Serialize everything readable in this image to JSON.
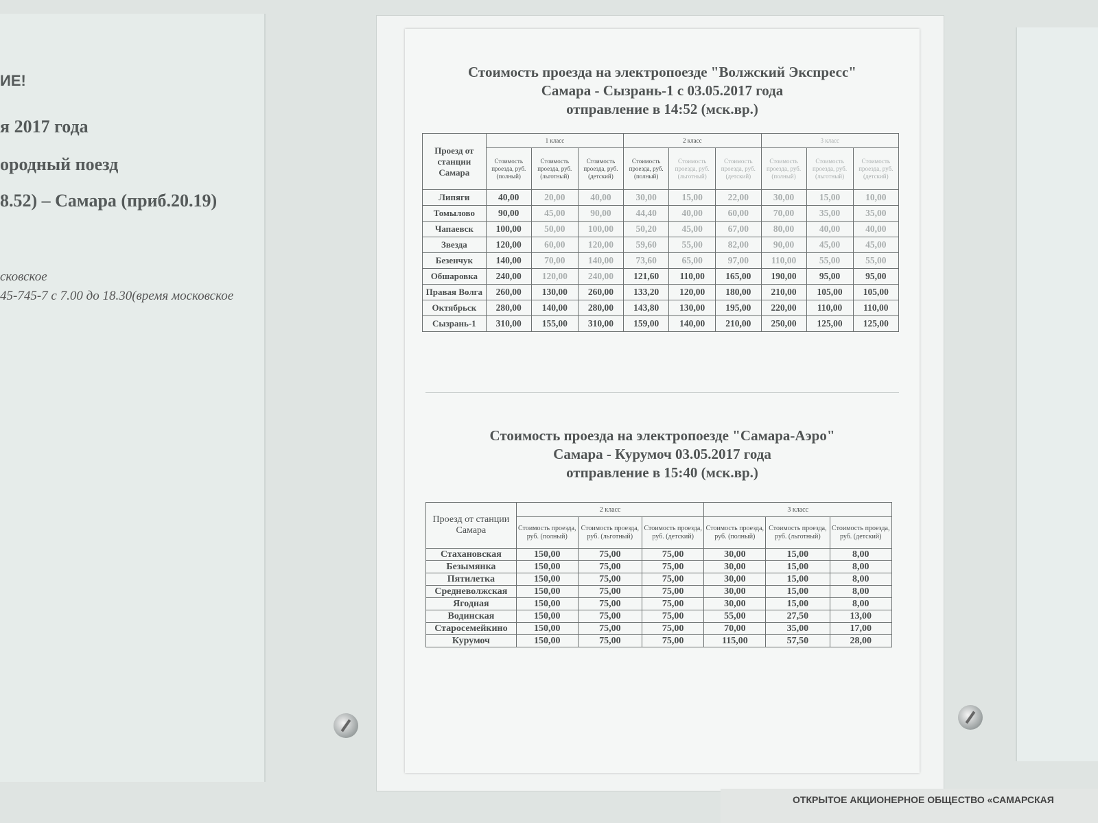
{
  "left_notice": {
    "line1": "ИЕ!",
    "line2": "я 2017 года",
    "line3": "ородный поезд",
    "line4": "8.52) – Самара (приб.20.19)",
    "line5": "сковское",
    "line6": "45-745-7 с 7.00 до 18.30(время московское"
  },
  "table1": {
    "title": [
      "Стоимость проезда на электропоезде \"Волжский Экспресс\"",
      "Самара - Сызрань-1 с 03.05.2017 года",
      "отправление в 14:52 (мск.вр.)"
    ],
    "station_header": "Проезд от станции Самара",
    "classes": [
      "1 класс",
      "2 класс",
      "3 класс"
    ],
    "subheaders": [
      "Стоимость проезда, руб. (полный)",
      "Стоимость проезда, руб. (льготный)",
      "Стоимость проезда, руб. (детский)"
    ],
    "rows": [
      {
        "station": "Липяги",
        "values": [
          "40,00",
          "20,00",
          "40,00",
          "30,00",
          "15,00",
          "22,00",
          "30,00",
          "15,00",
          "10,00"
        ]
      },
      {
        "station": "Томылово",
        "values": [
          "90,00",
          "45,00",
          "90,00",
          "44,40",
          "40,00",
          "60,00",
          "70,00",
          "35,00",
          "35,00"
        ]
      },
      {
        "station": "Чапаевск",
        "values": [
          "100,00",
          "50,00",
          "100,00",
          "50,20",
          "45,00",
          "67,00",
          "80,00",
          "40,00",
          "40,00"
        ]
      },
      {
        "station": "Звезда",
        "values": [
          "120,00",
          "60,00",
          "120,00",
          "59,60",
          "55,00",
          "82,00",
          "90,00",
          "45,00",
          "45,00"
        ]
      },
      {
        "station": "Безенчук",
        "values": [
          "140,00",
          "70,00",
          "140,00",
          "73,60",
          "65,00",
          "97,00",
          "110,00",
          "55,00",
          "55,00"
        ]
      },
      {
        "station": "Обшаровка",
        "values": [
          "240,00",
          "120,00",
          "240,00",
          "121,60",
          "110,00",
          "165,00",
          "190,00",
          "95,00",
          "95,00"
        ]
      },
      {
        "station": "Правая Волга",
        "values": [
          "260,00",
          "130,00",
          "260,00",
          "133,20",
          "120,00",
          "180,00",
          "210,00",
          "105,00",
          "105,00"
        ]
      },
      {
        "station": "Октябрьск",
        "values": [
          "280,00",
          "140,00",
          "280,00",
          "143,80",
          "130,00",
          "195,00",
          "220,00",
          "110,00",
          "110,00"
        ]
      },
      {
        "station": "Сызрань-1",
        "values": [
          "310,00",
          "155,00",
          "310,00",
          "159,00",
          "140,00",
          "210,00",
          "250,00",
          "125,00",
          "125,00"
        ]
      }
    ]
  },
  "table2": {
    "title": [
      "Стоимость проезда на электропоезде \"Самара-Аэро\"",
      "Самара - Курумоч 03.05.2017 года",
      "отправление в 15:40 (мск.вр.)"
    ],
    "station_header": "Проезд от станции Самара",
    "classes": [
      "2 класс",
      "3 класс"
    ],
    "subheaders": [
      "Стоимость проезда, руб. (полный)",
      "Стоимость проезда, руб. (льготный)",
      "Стоимость проезда, руб. (детский)"
    ],
    "rows": [
      {
        "station": "Стахановская",
        "values": [
          "150,00",
          "75,00",
          "75,00",
          "30,00",
          "15,00",
          "8,00"
        ]
      },
      {
        "station": "Безымянка",
        "values": [
          "150,00",
          "75,00",
          "75,00",
          "30,00",
          "15,00",
          "8,00"
        ]
      },
      {
        "station": "Пятилетка",
        "values": [
          "150,00",
          "75,00",
          "75,00",
          "30,00",
          "15,00",
          "8,00"
        ]
      },
      {
        "station": "Средневолжская",
        "values": [
          "150,00",
          "75,00",
          "75,00",
          "30,00",
          "15,00",
          "8,00"
        ]
      },
      {
        "station": "Ягодная",
        "values": [
          "150,00",
          "75,00",
          "75,00",
          "30,00",
          "15,00",
          "8,00"
        ]
      },
      {
        "station": "Водинская",
        "values": [
          "150,00",
          "75,00",
          "75,00",
          "55,00",
          "27,50",
          "13,00"
        ]
      },
      {
        "station": "Старосемейкино",
        "values": [
          "150,00",
          "75,00",
          "75,00",
          "70,00",
          "35,00",
          "17,00"
        ]
      },
      {
        "station": "Курумоч",
        "values": [
          "150,00",
          "75,00",
          "75,00",
          "115,00",
          "57,50",
          "28,00"
        ]
      }
    ]
  },
  "footer": "ОТКРЫТОЕ АКЦИОНЕРНОЕ ОБЩЕСТВО «САМАРСКАЯ"
}
